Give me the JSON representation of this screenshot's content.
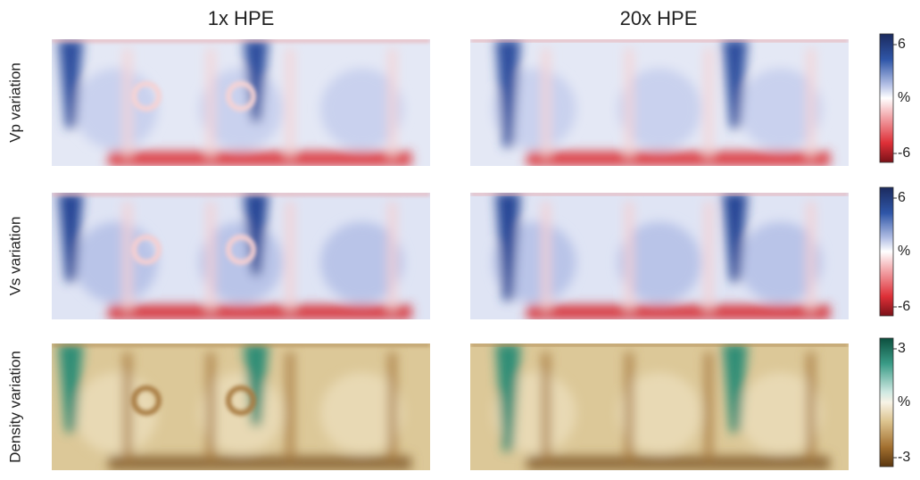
{
  "columns": [
    "1x HPE",
    "20x HPE"
  ],
  "rows": [
    {
      "label": "Vp variation",
      "colorbar": {
        "max": "6",
        "unit": "%",
        "min": "-6"
      }
    },
    {
      "label": "Vs variation",
      "colorbar": {
        "max": "6",
        "unit": "%",
        "min": "-6"
      }
    },
    {
      "label": "Density variation",
      "colorbar": {
        "max": "3",
        "unit": "%",
        "min": "-3"
      }
    }
  ]
}
